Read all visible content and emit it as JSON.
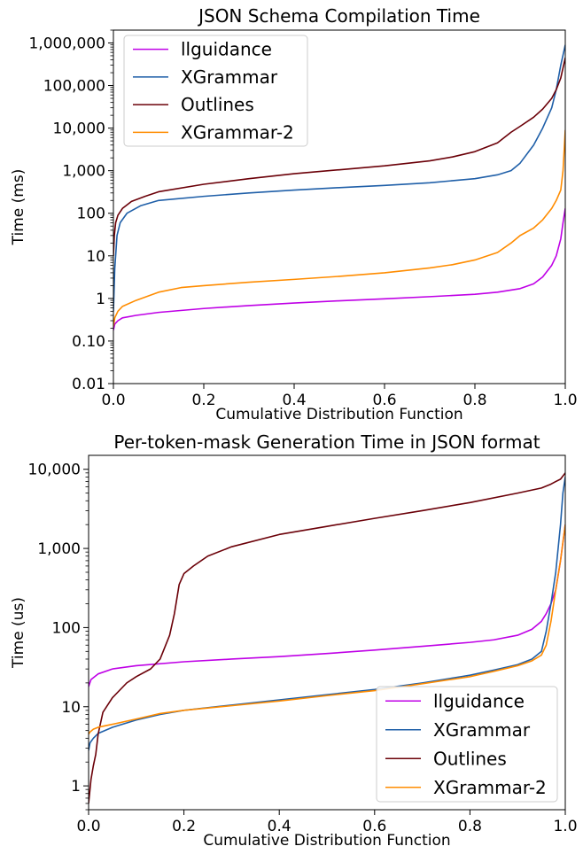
{
  "chart_data": [
    {
      "type": "line",
      "title": "JSON Schema Compilation Time",
      "xlabel": "Cumulative Distribution Function",
      "ylabel": "Time (ms)",
      "xlim": [
        0,
        1
      ],
      "ylim": [
        0.01,
        2000000
      ],
      "yscale": "log",
      "xticks": [
        0.0,
        0.2,
        0.4,
        0.6,
        0.8,
        1.0
      ],
      "xtick_labels": [
        "0.0",
        "0.2",
        "0.4",
        "0.6",
        "0.8",
        "1.0"
      ],
      "yticks": [
        0.01,
        0.1,
        1,
        10,
        100,
        1000,
        10000,
        100000,
        1000000
      ],
      "ytick_labels": [
        "0.01",
        "0.10",
        "1",
        "10",
        "100",
        "1,000",
        "10,000",
        "100,000",
        "1,000,000"
      ],
      "grid": false,
      "legend_position": "top-left",
      "series": [
        {
          "name": "llguidance",
          "color": "#bf00e6",
          "x": [
            0,
            0.003,
            0.01,
            0.02,
            0.05,
            0.1,
            0.2,
            0.3,
            0.4,
            0.5,
            0.6,
            0.7,
            0.8,
            0.85,
            0.9,
            0.93,
            0.95,
            0.97,
            0.98,
            0.99,
            0.995,
            1.0
          ],
          "values": [
            0.18,
            0.25,
            0.3,
            0.35,
            0.4,
            0.47,
            0.58,
            0.68,
            0.78,
            0.88,
            0.98,
            1.1,
            1.25,
            1.4,
            1.7,
            2.2,
            3.2,
            6,
            10,
            25,
            60,
            130
          ]
        },
        {
          "name": "XGrammar",
          "color": "#1f5fa8",
          "x": [
            0,
            0.003,
            0.008,
            0.015,
            0.03,
            0.06,
            0.1,
            0.2,
            0.3,
            0.4,
            0.5,
            0.6,
            0.7,
            0.8,
            0.85,
            0.88,
            0.9,
            0.93,
            0.95,
            0.97,
            0.98,
            0.99,
            1.0
          ],
          "values": [
            0.5,
            5,
            30,
            60,
            100,
            150,
            200,
            250,
            300,
            350,
            400,
            450,
            520,
            650,
            800,
            1000,
            1500,
            4000,
            10000,
            30000,
            80000,
            300000,
            900000
          ]
        },
        {
          "name": "Outlines",
          "color": "#6b0008",
          "x": [
            0,
            0.002,
            0.005,
            0.01,
            0.02,
            0.04,
            0.07,
            0.1,
            0.2,
            0.3,
            0.4,
            0.5,
            0.6,
            0.7,
            0.75,
            0.8,
            0.85,
            0.88,
            0.9,
            0.93,
            0.95,
            0.97,
            0.98,
            0.99,
            1.0
          ],
          "values": [
            10,
            30,
            60,
            90,
            130,
            190,
            250,
            320,
            480,
            650,
            850,
            1050,
            1300,
            1700,
            2100,
            2800,
            4500,
            8000,
            11000,
            18000,
            28000,
            50000,
            80000,
            150000,
            450000
          ]
        },
        {
          "name": "XGrammar-2",
          "color": "#ff8c00",
          "x": [
            0,
            0.003,
            0.01,
            0.02,
            0.05,
            0.1,
            0.15,
            0.2,
            0.3,
            0.4,
            0.5,
            0.6,
            0.7,
            0.75,
            0.8,
            0.85,
            0.88,
            0.9,
            0.93,
            0.95,
            0.97,
            0.98,
            0.99,
            0.995,
            1.0
          ],
          "values": [
            0.22,
            0.35,
            0.5,
            0.65,
            0.9,
            1.4,
            1.8,
            2.0,
            2.4,
            2.8,
            3.3,
            4.0,
            5.2,
            6.2,
            8.0,
            12,
            20,
            30,
            45,
            70,
            130,
            200,
            350,
            1000,
            9000
          ]
        }
      ]
    },
    {
      "type": "line",
      "title": "Per-token-mask Generation Time in JSON format",
      "xlabel": "Cumulative Distribution Function",
      "ylabel": "Time (us)",
      "xlim": [
        0,
        1
      ],
      "ylim": [
        0.5,
        15000
      ],
      "yscale": "log",
      "xticks": [
        0.0,
        0.2,
        0.4,
        0.6,
        0.8,
        1.0
      ],
      "xtick_labels": [
        "0.0",
        "0.2",
        "0.4",
        "0.6",
        "0.8",
        "1.0"
      ],
      "yticks": [
        1,
        10,
        100,
        1000,
        10000
      ],
      "ytick_labels": [
        "1",
        "10",
        "100",
        "1,000",
        "10,000"
      ],
      "grid": false,
      "legend_position": "bottom-right",
      "series": [
        {
          "name": "llguidance",
          "color": "#bf00e6",
          "x": [
            0,
            0.005,
            0.02,
            0.05,
            0.1,
            0.2,
            0.3,
            0.4,
            0.5,
            0.6,
            0.7,
            0.8,
            0.85,
            0.9,
            0.93,
            0.95,
            0.96,
            0.97,
            0.98,
            0.99,
            1.0
          ],
          "values": [
            18,
            22,
            26,
            30,
            33,
            37,
            40,
            43,
            47,
            52,
            58,
            65,
            70,
            80,
            95,
            120,
            150,
            200,
            300,
            700,
            2000
          ]
        },
        {
          "name": "XGrammar",
          "color": "#1f5fa8",
          "x": [
            0,
            0.003,
            0.01,
            0.02,
            0.05,
            0.1,
            0.15,
            0.2,
            0.3,
            0.4,
            0.5,
            0.6,
            0.7,
            0.8,
            0.85,
            0.9,
            0.93,
            0.95,
            0.96,
            0.97,
            0.98,
            0.99,
            0.995,
            1.0
          ],
          "values": [
            2.8,
            3.5,
            4.0,
            4.6,
            5.5,
            6.8,
            8.0,
            9.0,
            10.5,
            12.2,
            14.2,
            16.5,
            20,
            25,
            29,
            34,
            40,
            50,
            90,
            200,
            500,
            2000,
            5000,
            8000
          ]
        },
        {
          "name": "Outlines",
          "color": "#6b0008",
          "x": [
            0,
            0.005,
            0.01,
            0.015,
            0.02,
            0.03,
            0.05,
            0.08,
            0.1,
            0.13,
            0.15,
            0.17,
            0.18,
            0.19,
            0.2,
            0.22,
            0.25,
            0.3,
            0.4,
            0.5,
            0.6,
            0.7,
            0.8,
            0.9,
            0.95,
            0.97,
            0.98,
            0.99,
            1.0
          ],
          "values": [
            0.6,
            1.2,
            1.8,
            2.5,
            4.5,
            8.5,
            13,
            20,
            24,
            30,
            40,
            80,
            150,
            350,
            480,
            600,
            800,
            1050,
            1500,
            1900,
            2400,
            3000,
            3800,
            5000,
            5800,
            6500,
            7000,
            7500,
            9000
          ]
        },
        {
          "name": "XGrammar-2",
          "color": "#ff8c00",
          "x": [
            0,
            0.003,
            0.01,
            0.02,
            0.05,
            0.1,
            0.15,
            0.2,
            0.3,
            0.4,
            0.5,
            0.6,
            0.7,
            0.8,
            0.85,
            0.9,
            0.93,
            0.95,
            0.96,
            0.97,
            0.98,
            0.99,
            0.995,
            1.0
          ],
          "values": [
            4.5,
            4.8,
            5.2,
            5.5,
            6.0,
            7.0,
            8.2,
            9.0,
            10.3,
            11.8,
            13.8,
            16.0,
            19.5,
            24,
            28,
            33,
            38,
            45,
            60,
            120,
            300,
            700,
            1200,
            2000
          ]
        }
      ]
    }
  ]
}
